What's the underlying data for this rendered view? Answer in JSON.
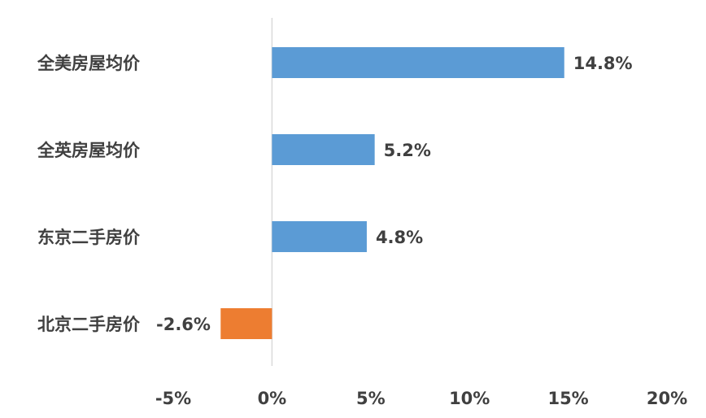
{
  "chart_data": {
    "type": "bar",
    "orientation": "horizontal",
    "categories": [
      "全美房屋均价",
      "全英房屋均价",
      "东京二手房价",
      "北京二手房价"
    ],
    "values": [
      14.8,
      5.2,
      4.8,
      -2.6
    ],
    "data_labels": [
      "14.8%",
      "5.2%",
      "4.8%",
      "-2.6%"
    ],
    "x_ticks": [
      -5,
      0,
      5,
      10,
      15,
      20
    ],
    "x_tick_labels": [
      "-5%",
      "0%",
      "5%",
      "10%",
      "15%",
      "20%"
    ],
    "xlim": [
      -5,
      20
    ],
    "title": "",
    "xlabel": "",
    "ylabel": "",
    "grid": false,
    "legend": "none",
    "colors": {
      "positive": "#5B9BD5",
      "negative": "#ED7D31",
      "axis": "#D9D9D9",
      "text": "#404040"
    }
  }
}
